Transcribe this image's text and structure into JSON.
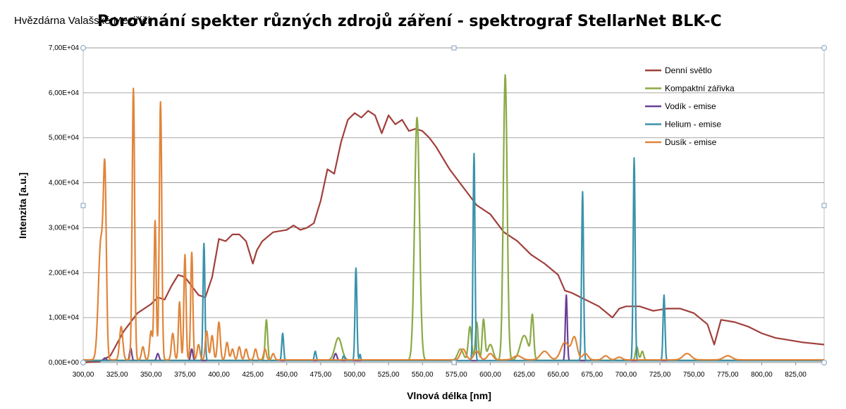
{
  "overlay_text": "Hvězdárna Valašské Meziříčí",
  "chart_data": {
    "type": "line",
    "title": "Porovnání spekter různých zdrojů záření - spektrograf StellarNet BLK-C",
    "xlabel": "Vlnová délka [nm]",
    "ylabel": "Intenzita [a.u.]",
    "xlim": [
      300,
      846
    ],
    "ylim": [
      0,
      70000
    ],
    "xticks": [
      "300,00",
      "325,00",
      "350,00",
      "375,00",
      "400,00",
      "425,00",
      "450,00",
      "475,00",
      "500,00",
      "525,00",
      "550,00",
      "575,00",
      "600,00",
      "625,00",
      "650,00",
      "675,00",
      "700,00",
      "725,00",
      "750,00",
      "775,00",
      "800,00",
      "825,00"
    ],
    "xtick_values": [
      300,
      325,
      350,
      375,
      400,
      425,
      450,
      475,
      500,
      525,
      550,
      575,
      600,
      625,
      650,
      675,
      700,
      725,
      750,
      775,
      800,
      825
    ],
    "yticks": [
      "0,00E+00",
      "1,00E+04",
      "2,00E+04",
      "3,00E+04",
      "4,00E+04",
      "5,00E+04",
      "6,00E+04",
      "7,00E+04"
    ],
    "ytick_values": [
      0,
      10000,
      20000,
      30000,
      40000,
      50000,
      60000,
      70000
    ],
    "grid": "horizontal",
    "legend_position": "top-right",
    "series": [
      {
        "name": "Denní světlo",
        "color": "#a0403c",
        "type": "line",
        "x": [
          300,
          312,
          320,
          330,
          340,
          350,
          355,
          360,
          365,
          370,
          375,
          380,
          385,
          390,
          395,
          400,
          405,
          410,
          415,
          420,
          425,
          428,
          432,
          440,
          450,
          455,
          460,
          465,
          470,
          475,
          480,
          485,
          490,
          495,
          500,
          505,
          510,
          515,
          520,
          525,
          530,
          535,
          540,
          545,
          550,
          555,
          560,
          570,
          580,
          590,
          600,
          610,
          620,
          630,
          640,
          650,
          655,
          660,
          670,
          680,
          690,
          695,
          700,
          710,
          720,
          730,
          740,
          750,
          760,
          765,
          770,
          780,
          790,
          800,
          810,
          820,
          830,
          846
        ],
        "y": [
          0,
          200,
          1500,
          7000,
          11000,
          13000,
          14500,
          14000,
          17000,
          19500,
          19000,
          17000,
          15000,
          14500,
          19000,
          27500,
          27000,
          28500,
          28500,
          27000,
          22000,
          25000,
          27000,
          29000,
          29500,
          30500,
          29500,
          30000,
          31000,
          36000,
          43000,
          42000,
          49000,
          54000,
          55500,
          54500,
          56000,
          55000,
          51000,
          55000,
          53000,
          54000,
          51500,
          52000,
          51500,
          50000,
          48000,
          43000,
          39000,
          35000,
          33000,
          29000,
          27000,
          24000,
          22000,
          19500,
          16000,
          15500,
          14000,
          12500,
          10000,
          12000,
          12500,
          12500,
          11500,
          12000,
          12000,
          11000,
          8500,
          4000,
          9500,
          9000,
          8000,
          6500,
          5500,
          5000,
          4500,
          4000
        ]
      },
      {
        "name": "Kompaktní zářivka",
        "color": "#8aaa44",
        "type": "peaks",
        "baseline": 500,
        "peaks": [
          [
            435,
            9500,
            0.9
          ],
          [
            488,
            5500,
            2.5
          ],
          [
            546,
            54500,
            1.8
          ],
          [
            578,
            3000,
            2
          ],
          [
            585,
            8000,
            1.2
          ],
          [
            590,
            9000,
            1
          ],
          [
            595,
            9500,
            1
          ],
          [
            600,
            4000,
            2
          ],
          [
            611,
            64000,
            1.4
          ],
          [
            625,
            6000,
            3
          ],
          [
            631,
            10000,
            1
          ],
          [
            708,
            3500,
            1
          ],
          [
            712,
            2500,
            1
          ]
        ]
      },
      {
        "name": "Vodík - emise",
        "color": "#6a3f96",
        "type": "peaks",
        "baseline": 400,
        "peaks": [
          [
            316,
            1000,
            1
          ],
          [
            335,
            3200,
            0.8
          ],
          [
            355,
            2000,
            0.9
          ],
          [
            380,
            3000,
            0.8
          ],
          [
            486,
            2000,
            1
          ],
          [
            656,
            15000,
            0.7
          ]
        ]
      },
      {
        "name": "Helium - emise",
        "color": "#3a92ab",
        "type": "peaks",
        "baseline": 400,
        "peaks": [
          [
            389,
            26500,
            0.7
          ],
          [
            447,
            6500,
            0.7
          ],
          [
            471,
            2500,
            0.7
          ],
          [
            492,
            1500,
            0.7
          ],
          [
            501,
            21000,
            0.7
          ],
          [
            504,
            1800,
            0.5
          ],
          [
            588,
            46500,
            0.7
          ],
          [
            668,
            38000,
            0.7
          ],
          [
            706,
            45500,
            0.7
          ],
          [
            728,
            15000,
            0.7
          ]
        ]
      },
      {
        "name": "Dusík - emise",
        "color": "#e0853a",
        "type": "peaks",
        "baseline": 600,
        "peaks": [
          [
            313,
            27000,
            1.8
          ],
          [
            316,
            38000,
            1.1
          ],
          [
            328,
            8000,
            1.2
          ],
          [
            337,
            61000,
            0.9
          ],
          [
            344,
            3500,
            1
          ],
          [
            350,
            7000,
            1
          ],
          [
            353,
            31500,
            0.8
          ],
          [
            357,
            58000,
            0.9
          ],
          [
            366,
            6500,
            1
          ],
          [
            371,
            13500,
            0.8
          ],
          [
            375,
            24000,
            0.8
          ],
          [
            380,
            24500,
            0.8
          ],
          [
            385,
            4000,
            1
          ],
          [
            391,
            7000,
            1
          ],
          [
            395,
            6000,
            1
          ],
          [
            400,
            9000,
            1
          ],
          [
            406,
            4500,
            1
          ],
          [
            410,
            3000,
            1
          ],
          [
            415,
            3500,
            1
          ],
          [
            420,
            3000,
            1
          ],
          [
            427,
            3000,
            1
          ],
          [
            434,
            3000,
            1
          ],
          [
            440,
            2000,
            1
          ],
          [
            580,
            3000,
            2
          ],
          [
            590,
            2500,
            2
          ],
          [
            600,
            2000,
            2
          ],
          [
            620,
            1500,
            3
          ],
          [
            640,
            2500,
            3
          ],
          [
            655,
            4500,
            3
          ],
          [
            662,
            5500,
            2
          ],
          [
            670,
            2000,
            2
          ],
          [
            685,
            1500,
            2
          ],
          [
            695,
            1200,
            2
          ],
          [
            745,
            2000,
            3
          ],
          [
            775,
            1500,
            3
          ]
        ]
      }
    ]
  }
}
